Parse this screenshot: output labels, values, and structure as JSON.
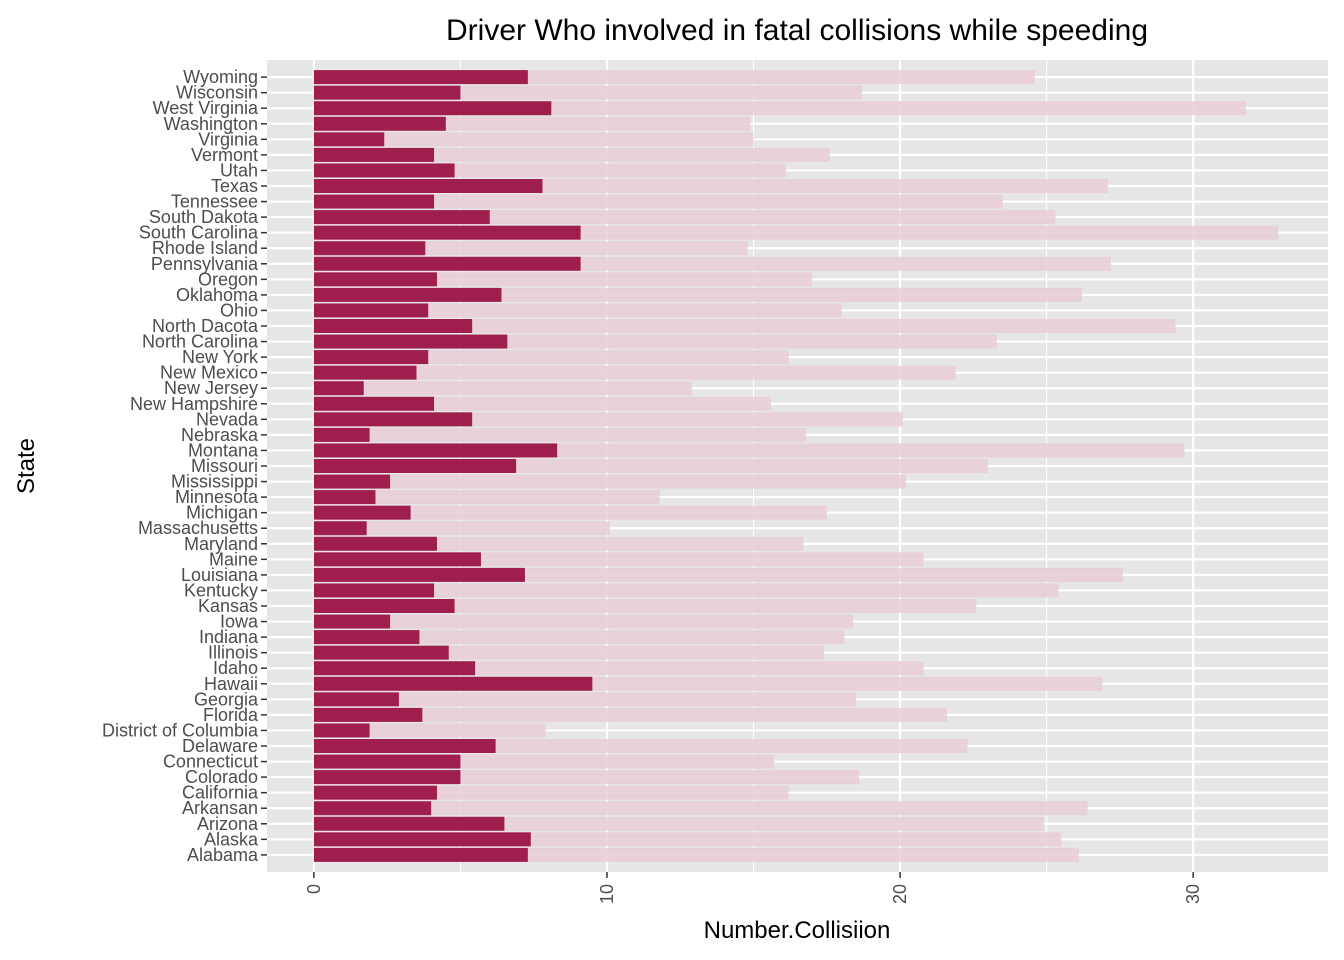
{
  "chart_data": {
    "type": "bar",
    "orientation": "horizontal",
    "title": "Driver Who involved in fatal collisions while speeding",
    "xlabel": "Number.Collisiion",
    "ylabel": "State",
    "xlim": [
      -1.6,
      34.6
    ],
    "xticks": [
      0,
      10,
      20,
      30
    ],
    "grid": true,
    "legend": "none",
    "colors": {
      "speeding": "#9e1f4d",
      "total": "#e8cdd5",
      "panel": "#e6e6e6",
      "grid": "#ffffff"
    },
    "categories": [
      "Alabama",
      "Alaska",
      "Arizona",
      "Arkansan",
      "California",
      "Colorado",
      "Connecticut",
      "Delaware",
      "District of Columbia",
      "Florida",
      "Georgia",
      "Hawaii",
      "Idaho",
      "Illinois",
      "Indiana",
      "Iowa",
      "Kansas",
      "Kentucky",
      "Louisiana",
      "Maine",
      "Maryland",
      "Massachusetts",
      "Michigan",
      "Minnesota",
      "Mississippi",
      "Missouri",
      "Montana",
      "Nebraska",
      "Nevada",
      "New Hampshire",
      "New Jersey",
      "New Mexico",
      "New York",
      "North Carolina",
      "North Dacota",
      "Ohio",
      "Oklahoma",
      "Oregon",
      "Pennsylvania",
      "Rhode Island",
      "South Carolina",
      "South Dakota",
      "Tennessee",
      "Texas",
      "Utah",
      "Vermont",
      "Virginia",
      "Washington",
      "West Virginia",
      "Wisconsin",
      "Wyoming"
    ],
    "series": [
      {
        "values": [
          26.1,
          25.5,
          24.9,
          26.4,
          16.2,
          18.6,
          15.7,
          22.3,
          7.9,
          21.6,
          18.5,
          26.9,
          20.8,
          17.4,
          18.1,
          18.4,
          22.6,
          25.4,
          27.6,
          20.8,
          16.7,
          10.1,
          17.5,
          11.8,
          20.2,
          23.0,
          29.7,
          16.8,
          20.1,
          15.6,
          12.9,
          21.9,
          16.2,
          23.3,
          29.4,
          18.0,
          26.2,
          17.0,
          27.2,
          14.8,
          32.9,
          25.3,
          23.5,
          27.1,
          16.1,
          17.6,
          15.0,
          14.9,
          31.8,
          18.7,
          24.6
        ]
      },
      {
        "values": [
          7.3,
          7.4,
          6.5,
          4.0,
          4.2,
          5.0,
          5.0,
          6.2,
          1.9,
          3.7,
          2.9,
          9.5,
          5.5,
          4.6,
          3.6,
          2.6,
          4.8,
          4.1,
          7.2,
          5.7,
          4.2,
          1.8,
          3.3,
          2.1,
          2.6,
          6.9,
          8.3,
          1.9,
          5.4,
          4.1,
          1.7,
          3.5,
          3.9,
          6.6,
          5.4,
          3.9,
          6.4,
          4.2,
          9.1,
          3.8,
          9.1,
          6.0,
          4.1,
          7.8,
          4.8,
          4.1,
          2.4,
          4.5,
          8.1,
          5.0,
          7.3
        ]
      }
    ]
  }
}
